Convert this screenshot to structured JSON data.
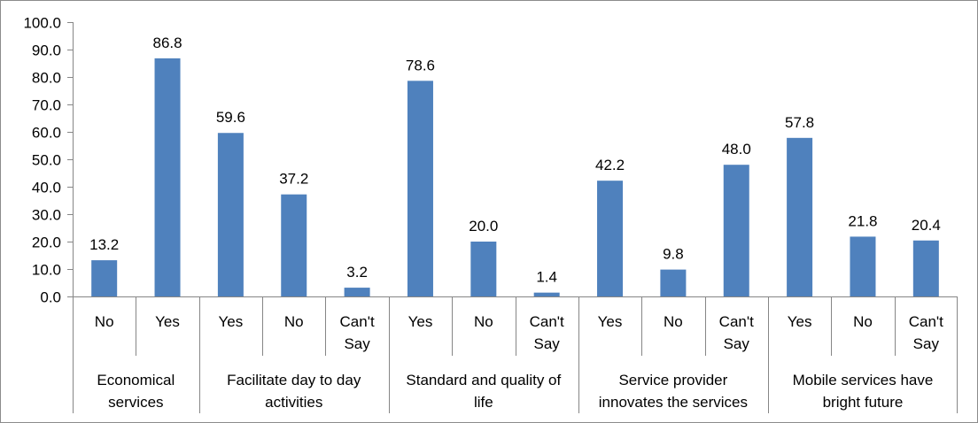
{
  "chart_data": {
    "type": "bar",
    "title": "",
    "xlabel": "",
    "ylabel": "",
    "ylim": [
      0,
      100
    ],
    "ytick_labels": [
      "0.0",
      "10.0",
      "20.0",
      "30.0",
      "40.0",
      "50.0",
      "60.0",
      "70.0",
      "80.0",
      "90.0",
      "100.0"
    ],
    "grid": false,
    "legend": "none",
    "bar_color": "#4F81BD",
    "groups": [
      {
        "label": [
          "Economical",
          "services"
        ],
        "categories": [
          [
            "No"
          ],
          [
            "Yes"
          ]
        ],
        "values": [
          13.2,
          86.8
        ],
        "value_labels": [
          "13.2",
          "86.8"
        ]
      },
      {
        "label": [
          "Facilitate day to day",
          "activities"
        ],
        "categories": [
          [
            "Yes"
          ],
          [
            "No"
          ],
          [
            "Can't",
            "Say"
          ]
        ],
        "values": [
          59.6,
          37.2,
          3.2
        ],
        "value_labels": [
          "59.6",
          "37.2",
          "3.2"
        ]
      },
      {
        "label": [
          "Standard and quality of",
          "life"
        ],
        "categories": [
          [
            "Yes"
          ],
          [
            "No"
          ],
          [
            "Can't",
            "Say"
          ]
        ],
        "values": [
          78.6,
          20.0,
          1.4
        ],
        "value_labels": [
          "78.6",
          "20.0",
          "1.4"
        ]
      },
      {
        "label": [
          "Service provider",
          "innovates the services"
        ],
        "categories": [
          [
            "Yes"
          ],
          [
            "No"
          ],
          [
            "Can't",
            "Say"
          ]
        ],
        "values": [
          42.2,
          9.8,
          48.0
        ],
        "value_labels": [
          "42.2",
          "9.8",
          "48.0"
        ]
      },
      {
        "label": [
          "Mobile services have",
          "bright future"
        ],
        "categories": [
          [
            "Yes"
          ],
          [
            "No"
          ],
          [
            "Can't",
            "Say"
          ]
        ],
        "values": [
          57.8,
          21.8,
          20.4
        ],
        "value_labels": [
          "57.8",
          "21.8",
          "20.4"
        ]
      }
    ]
  }
}
